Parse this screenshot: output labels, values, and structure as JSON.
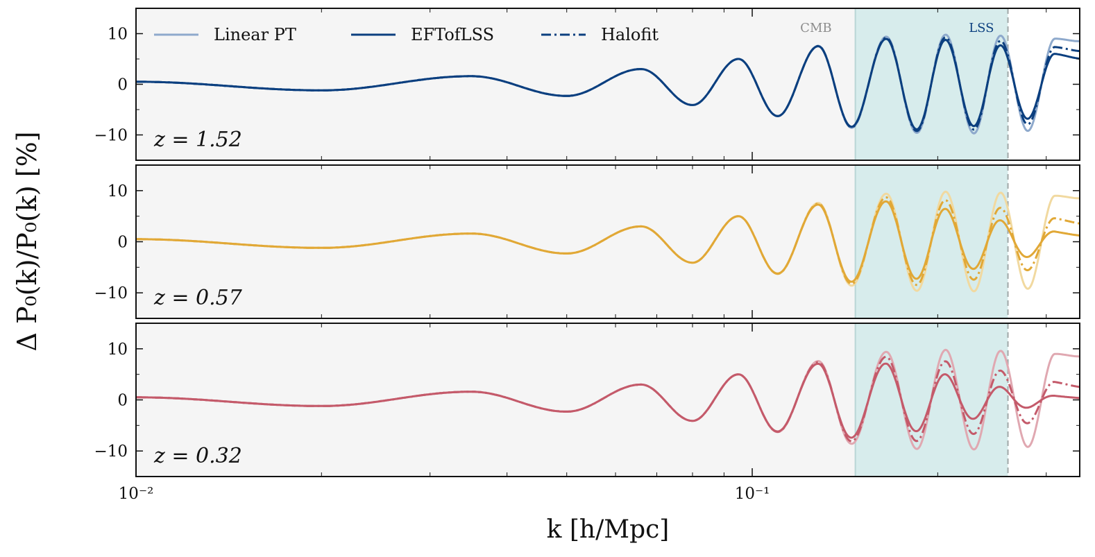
{
  "chart_data": {
    "type": "line",
    "ylabel": "Δ P₀(k)/P₀(k) [%]",
    "xlabel": "k [h/Mpc]",
    "xscale": "log",
    "xlim": [
      0.01,
      0.34
    ],
    "ylim": [
      -15,
      15
    ],
    "x_major_ticks": [
      {
        "value": 0.01,
        "label": "10⁻²"
      },
      {
        "value": 0.1,
        "label": "10⁻¹"
      }
    ],
    "y_ticks": [
      {
        "value": 10,
        "label": "10"
      },
      {
        "value": 0,
        "label": "0"
      },
      {
        "value": -10,
        "label": "−10"
      }
    ],
    "shaded_region": {
      "kmin": 0.147,
      "kmax": 0.26,
      "color": "#d7ecec"
    },
    "region_labels": [
      {
        "text": "CMB",
        "color": "#8c8c8c"
      },
      {
        "text": "LSS",
        "color": "#0b3f7f"
      }
    ],
    "legend": [
      {
        "label": "Linear PT",
        "style": "solid-light"
      },
      {
        "label": "EFTofLSS",
        "style": "solid"
      },
      {
        "label": "Halofit",
        "style": "dashdot"
      }
    ],
    "panels": [
      {
        "z_label": "z = 1.52",
        "color": "#0b3f7f",
        "light_color": "#8ea9cc",
        "damping": {
          "eft": 0.12,
          "halofit": 0.06
        }
      },
      {
        "z_label": "z = 0.57",
        "color": "#e1a836",
        "light_color": "#f1d9a0",
        "damping": {
          "eft": 0.45,
          "halofit": 0.2
        }
      },
      {
        "z_label": "z = 0.32",
        "color": "#c45a6a",
        "light_color": "#e0a8b1",
        "damping": {
          "eft": 0.72,
          "halofit": 0.28
        }
      }
    ],
    "series": [
      {
        "name": "Linear PT",
        "x": [
          0.01,
          0.02,
          0.035,
          0.05,
          0.066,
          0.08,
          0.095,
          0.11,
          0.128,
          0.145,
          0.165,
          0.185,
          0.206,
          0.229,
          0.253,
          0.28,
          0.31,
          0.34
        ],
        "y": [
          0.5,
          -1.2,
          1.6,
          -2.3,
          3.0,
          -4.1,
          5.0,
          -6.3,
          7.6,
          -8.6,
          9.4,
          -9.6,
          9.8,
          -9.7,
          9.6,
          -9.2,
          9.0,
          8.5
        ]
      }
    ]
  }
}
